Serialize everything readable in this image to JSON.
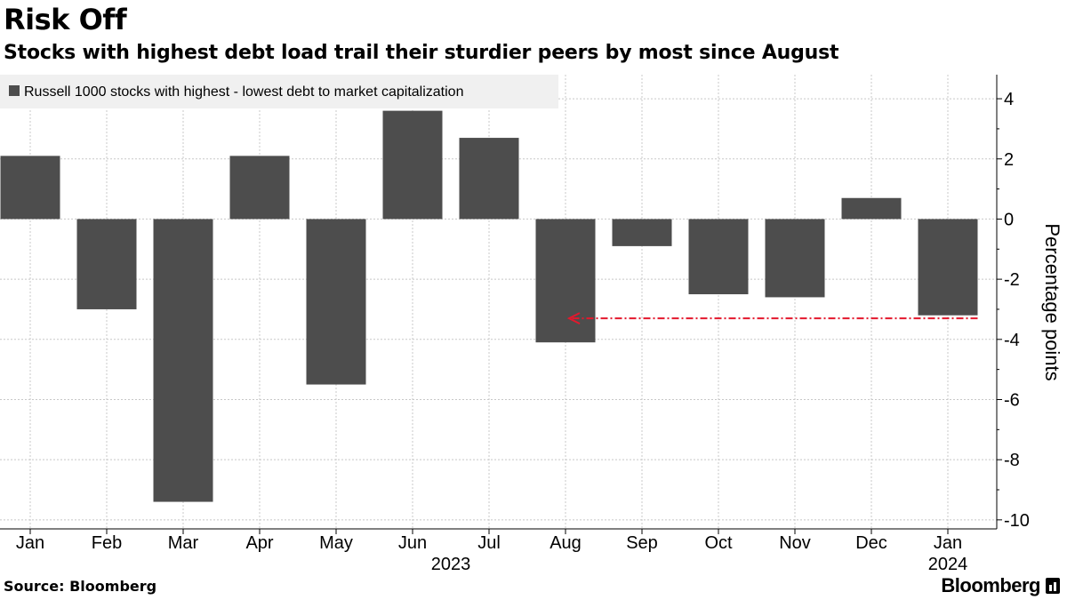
{
  "header": {
    "title": "Risk Off",
    "subtitle": "Stocks with highest debt load trail their sturdier peers by most since August"
  },
  "footer": {
    "source": "Source: Bloomberg",
    "brand": "Bloomberg",
    "brand_icon": "bloomberg-terminal-icon"
  },
  "chart_data": {
    "type": "bar",
    "title": "Risk Off",
    "categories": [
      "Jan",
      "Feb",
      "Mar",
      "Apr",
      "May",
      "Jun",
      "Jul",
      "Aug",
      "Sep",
      "Oct",
      "Nov",
      "Dec",
      "Jan"
    ],
    "year_labels": [
      {
        "label": "2023",
        "category_index": 5.5
      },
      {
        "label": "2024",
        "category_index": 12
      }
    ],
    "series": [
      {
        "name": "Russell 1000 stocks with highest - lowest debt to market capitalization",
        "color": "#4d4d4d",
        "values": [
          2.1,
          -3.0,
          -9.4,
          2.1,
          -5.5,
          3.6,
          2.7,
          -4.1,
          -0.9,
          -2.5,
          -2.6,
          0.7,
          -3.2
        ]
      }
    ],
    "ylabel": "Percentage points",
    "ylim": [
      -10.3,
      4.8
    ],
    "yticks": [
      4,
      2,
      0,
      -2,
      -4,
      -6,
      -8,
      -10
    ],
    "ytick_labels": [
      "4",
      "2",
      "0",
      "-2",
      "-4",
      "-6",
      "-8",
      "-10"
    ],
    "grid": true,
    "legend_position": "top-left",
    "annotation": {
      "type": "dashed-arrow",
      "color": "#e3182d",
      "from_category_index": 12,
      "to_category_index": 7,
      "value": -3.3
    }
  }
}
